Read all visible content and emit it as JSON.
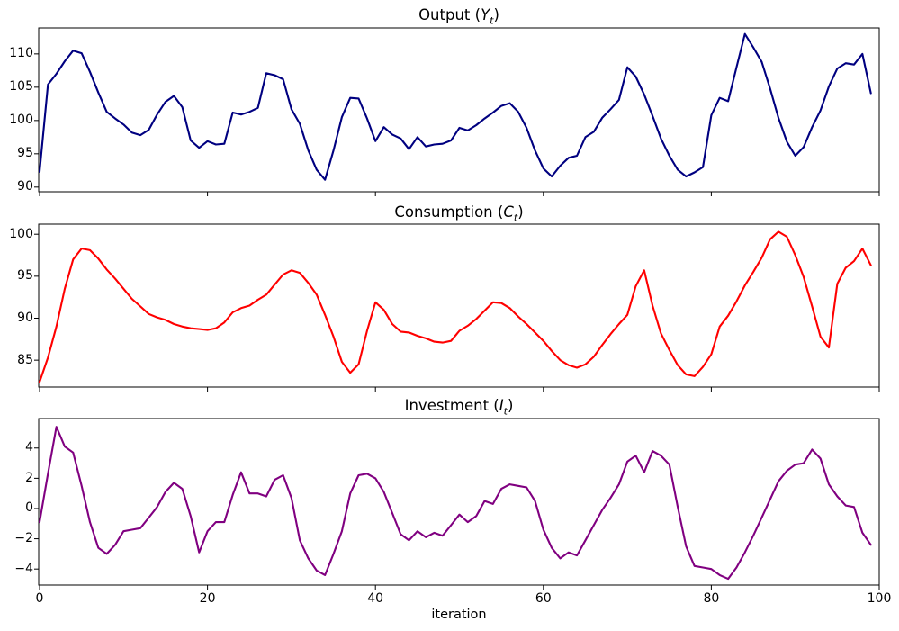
{
  "figure": {
    "xlabel": "iteration",
    "background": "#ffffff",
    "axis_color": "#000000"
  },
  "chart_data": [
    {
      "type": "line",
      "title": {
        "prefix": "Output (",
        "symbol": "Y",
        "subscript": "t",
        "suffix": ")"
      },
      "series_name": "Output",
      "color": "#000080",
      "x_start": 0,
      "x_step": 1,
      "xlim": [
        0,
        100
      ],
      "ylim": [
        89.3,
        113.9
      ],
      "yticks": [
        90,
        95,
        100,
        105,
        110
      ],
      "ytick_labels": [
        "90",
        "95",
        "100",
        "105",
        "110"
      ],
      "grid": false,
      "values": [
        92.3,
        105.4,
        107.0,
        108.9,
        110.5,
        110.1,
        107.3,
        104.2,
        101.3,
        100.3,
        99.4,
        98.2,
        97.8,
        98.6,
        100.9,
        102.8,
        103.7,
        102.0,
        97.0,
        95.9,
        96.9,
        96.4,
        96.5,
        101.2,
        100.9,
        101.3,
        101.9,
        107.1,
        106.8,
        106.2,
        101.7,
        99.5,
        95.5,
        92.6,
        91.1,
        95.5,
        100.5,
        103.4,
        103.3,
        100.3,
        96.9,
        99.0,
        97.9,
        97.3,
        95.7,
        97.5,
        96.1,
        96.4,
        96.5,
        97.0,
        98.9,
        98.5,
        99.3,
        100.3,
        101.2,
        102.2,
        102.6,
        101.3,
        98.9,
        95.5,
        92.8,
        91.6,
        93.2,
        94.4,
        94.7,
        97.5,
        98.3,
        100.4,
        101.7,
        103.1,
        108.0,
        106.6,
        103.9,
        100.7,
        97.3,
        94.7,
        92.6,
        91.6,
        92.2,
        93.0,
        100.8,
        103.4,
        102.9,
        108.0,
        113.0,
        111.0,
        108.8,
        104.8,
        100.4,
        96.8,
        94.7,
        96.0,
        99.0,
        101.5,
        105.1,
        107.8,
        108.6,
        108.4,
        110.0,
        104.1
      ]
    },
    {
      "type": "line",
      "title": {
        "prefix": "Consumption (",
        "symbol": "C",
        "subscript": "t",
        "suffix": ")"
      },
      "series_name": "Consumption",
      "color": "#FF0000",
      "x_start": 0,
      "x_step": 1,
      "xlim": [
        0,
        100
      ],
      "ylim": [
        81.8,
        101.2
      ],
      "yticks": [
        85,
        90,
        95,
        100
      ],
      "ytick_labels": [
        "85",
        "90",
        "95",
        "100"
      ],
      "grid": false,
      "values": [
        82.4,
        85.3,
        89.0,
        93.5,
        97.0,
        98.3,
        98.1,
        97.1,
        95.8,
        94.7,
        93.5,
        92.3,
        91.4,
        90.5,
        90.1,
        89.8,
        89.3,
        89.0,
        88.8,
        88.7,
        88.6,
        88.8,
        89.5,
        90.7,
        91.2,
        91.5,
        92.2,
        92.8,
        94.0,
        95.2,
        95.7,
        95.4,
        94.2,
        92.8,
        90.4,
        87.8,
        84.8,
        83.5,
        84.5,
        88.5,
        91.9,
        91.0,
        89.3,
        88.4,
        88.3,
        87.9,
        87.6,
        87.2,
        87.1,
        87.3,
        88.5,
        89.1,
        89.9,
        90.9,
        91.9,
        91.8,
        91.2,
        90.2,
        89.3,
        88.3,
        87.3,
        86.1,
        85.0,
        84.4,
        84.1,
        84.5,
        85.4,
        86.8,
        88.1,
        89.3,
        90.4,
        93.8,
        95.7,
        91.5,
        88.2,
        86.2,
        84.4,
        83.3,
        83.1,
        84.2,
        85.7,
        89.0,
        90.3,
        92.0,
        93.9,
        95.5,
        97.2,
        99.4,
        100.3,
        99.7,
        97.5,
        94.9,
        91.4,
        87.8,
        86.5,
        94.1,
        96.0,
        96.8,
        98.3,
        96.3
      ]
    },
    {
      "type": "line",
      "title": {
        "prefix": "Investment (",
        "symbol": "I",
        "subscript": "t",
        "suffix": ")"
      },
      "series_name": "Investment",
      "color": "#800080",
      "x_start": 0,
      "x_step": 1,
      "xlim": [
        0,
        100
      ],
      "ylim": [
        -5.06,
        5.95
      ],
      "yticks": [
        -4,
        -2,
        0,
        2,
        4
      ],
      "ytick_labels": [
        "−4",
        "−2",
        "0",
        "2",
        "4"
      ],
      "grid": false,
      "values": [
        -0.9,
        2.3,
        5.4,
        4.1,
        3.7,
        1.5,
        -0.9,
        -2.6,
        -3.0,
        -2.4,
        -1.5,
        -1.4,
        -1.3,
        -0.6,
        0.1,
        1.1,
        1.7,
        1.3,
        -0.5,
        -2.9,
        -1.5,
        -0.9,
        -0.9,
        0.9,
        2.4,
        1.0,
        1.0,
        0.8,
        1.9,
        2.2,
        0.7,
        -2.1,
        -3.3,
        -4.1,
        -4.4,
        -3.0,
        -1.5,
        1.0,
        2.2,
        2.3,
        2.0,
        1.1,
        -0.3,
        -1.7,
        -2.1,
        -1.5,
        -1.9,
        -1.6,
        -1.8,
        -1.1,
        -0.4,
        -0.9,
        -0.5,
        0.5,
        0.3,
        1.3,
        1.6,
        1.5,
        1.4,
        0.5,
        -1.4,
        -2.6,
        -3.3,
        -2.9,
        -3.1,
        -2.1,
        -1.1,
        -0.1,
        0.7,
        1.6,
        3.1,
        3.5,
        2.4,
        3.8,
        3.5,
        2.9,
        0.1,
        -2.5,
        -3.8,
        -3.9,
        -4.0,
        -4.4,
        -4.65,
        -3.9,
        -2.9,
        -1.8,
        -0.6,
        0.6,
        1.8,
        2.5,
        2.9,
        3.0,
        3.9,
        3.3,
        1.6,
        0.8,
        0.2,
        0.1,
        -1.6,
        -2.4
      ]
    }
  ],
  "x_axis": {
    "ticks": [
      0,
      20,
      40,
      60,
      80,
      100
    ],
    "tick_labels": [
      "0",
      "20",
      "40",
      "60",
      "80",
      "100"
    ]
  }
}
